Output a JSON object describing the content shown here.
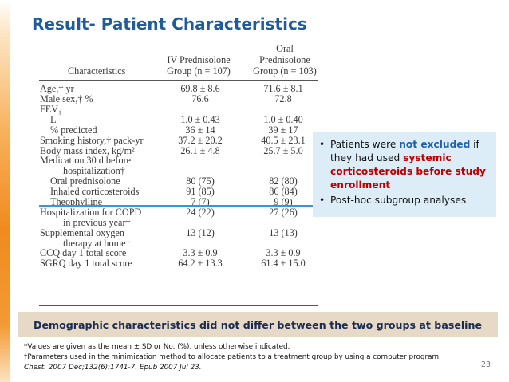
{
  "slide": {
    "title": "Result- Patient Characteristics",
    "page_number": "23"
  },
  "table": {
    "headers": {
      "characteristics": "Characteristics",
      "iv_line1": "IV Prednisolone",
      "iv_line2": "Group (n = 107)",
      "oral_line1": "Oral",
      "oral_line2": "Prednisolone",
      "oral_line3": "Group (n = 103)"
    },
    "rows": [
      {
        "label": "Age,† yr",
        "iv": "69.8 ± 8.6",
        "oral": "71.6 ± 8.1",
        "indent": 0
      },
      {
        "label": "Male sex,† %",
        "iv": "76.6",
        "oral": "72.8",
        "indent": 0
      },
      {
        "label": "FEV₁",
        "iv": "",
        "oral": "",
        "indent": 0
      },
      {
        "label": "L",
        "iv": "1.0 ± 0.43",
        "oral": "1.0 ± 0.40",
        "indent": 1
      },
      {
        "label": "% predicted",
        "iv": "36 ± 14",
        "oral": "39 ± 17",
        "indent": 1
      },
      {
        "label": "Smoking history,† pack-yr",
        "iv": "37.2 ± 20.2",
        "oral": "40.5 ± 23.1",
        "indent": 0
      },
      {
        "label": "Body mass index, kg/m²",
        "iv": "26.1 ± 4.8",
        "oral": "25.7 ± 5.0",
        "indent": 0
      },
      {
        "label": "Medication 30 d before",
        "iv": "",
        "oral": "",
        "indent": 0
      },
      {
        "label": "hospitalization†",
        "iv": "",
        "oral": "",
        "indent": 2
      },
      {
        "label": "Oral prednisolone",
        "iv": "80 (75)",
        "oral": "82 (80)",
        "indent": 1
      },
      {
        "label": "Inhaled corticosteroids",
        "iv": "91 (85)",
        "oral": "86 (84)",
        "indent": 1
      },
      {
        "label": "Theophylline",
        "iv": "7 (7)",
        "oral": "9 (9)",
        "indent": 1
      },
      {
        "label": "Hospitalization for COPD",
        "iv": "24 (22)",
        "oral": "27 (26)",
        "indent": 0
      },
      {
        "label": "in previous year†",
        "iv": "",
        "oral": "",
        "indent": 2
      },
      {
        "label": "Supplemental oxygen",
        "iv": "13 (12)",
        "oral": "13 (13)",
        "indent": 0
      },
      {
        "label": "therapy at home†",
        "iv": "",
        "oral": "",
        "indent": 2
      },
      {
        "label": "CCQ day 1 total score",
        "iv": "3.3 ± 0.9",
        "oral": "3.3 ± 0.9",
        "indent": 0
      },
      {
        "label": "SGRQ day 1 total score",
        "iv": "64.2 ± 13.3",
        "oral": "61.4 ± 15.0",
        "indent": 0
      }
    ]
  },
  "callout": {
    "bullet": "•",
    "b1_part1": "Patients were ",
    "b1_highlight_blue": "not excluded",
    "b1_part2": " if they had used ",
    "b1_highlight_red": "systemic corticosteroids before study enrollment",
    "b2": "Post-hoc subgroup analyses",
    "colors": {
      "background": "#dcedf7",
      "blue": "#1f5fae",
      "red": "#c00000"
    }
  },
  "banner": {
    "text": "Demographic characteristics did not differ between the two groups at baseline",
    "color": "#e6d9c6"
  },
  "footnotes": {
    "f1": "*Values are given as the mean ± SD or No. (%), unless otherwise indicated.",
    "f2": "†Parameters used in the minimization method to allocate patients to a treatment group by using a computer program.",
    "f3": "Chest. 2007 Dec;132(6):1741-7. Epub 2007 Jul 23."
  }
}
